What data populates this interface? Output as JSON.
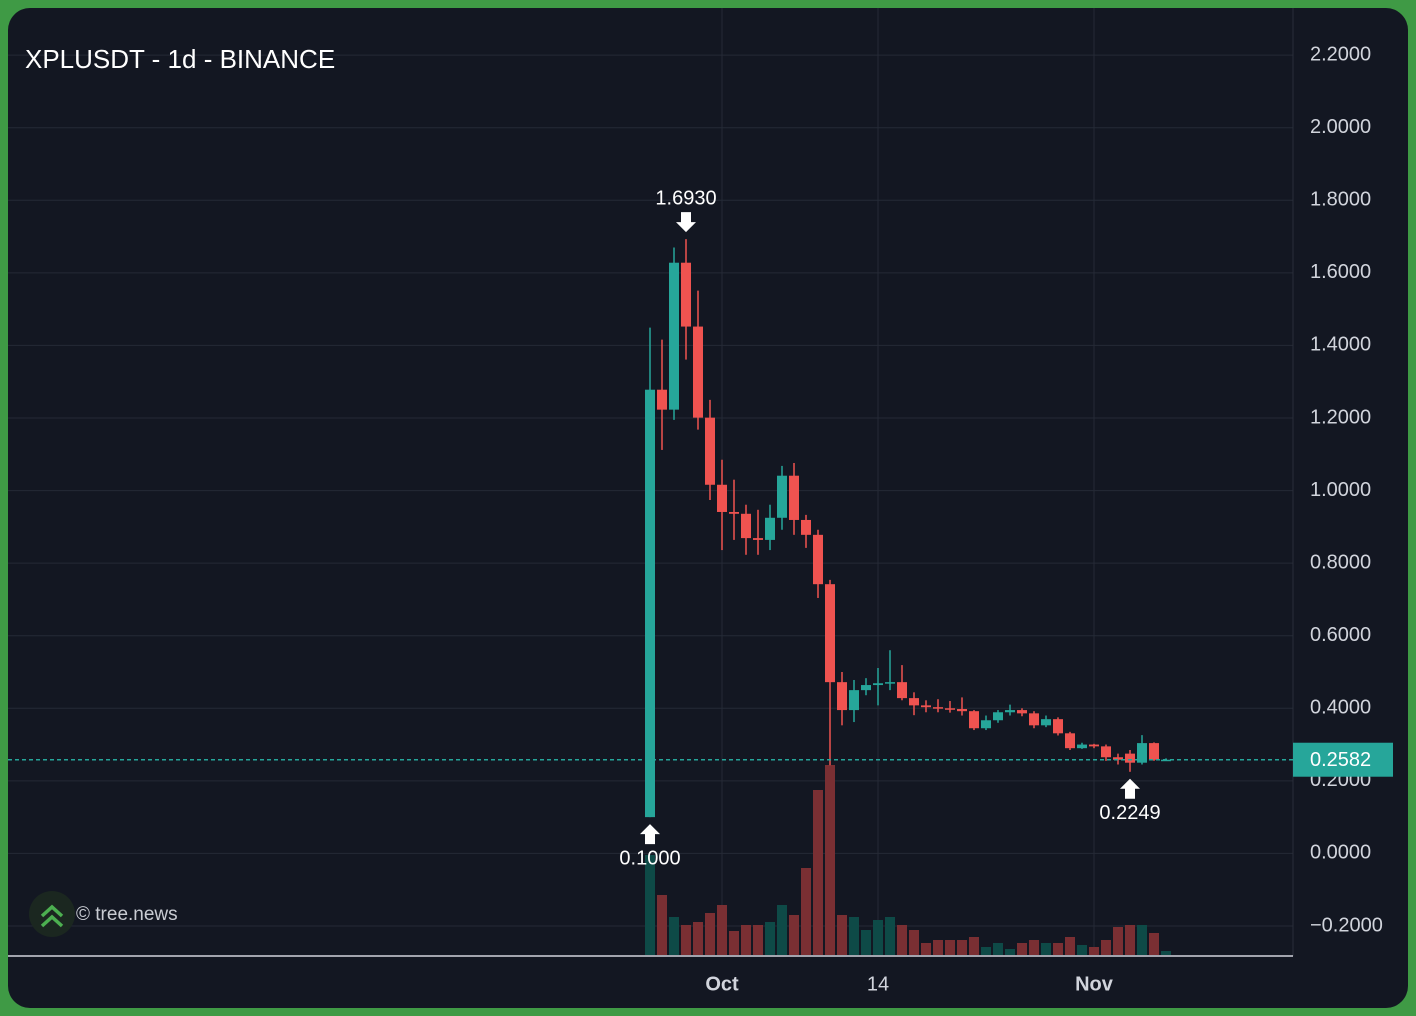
{
  "chart_data": {
    "type": "candlestick",
    "title": "XPLUSDT - 1d - BINANCE",
    "watermark": "© tree.news",
    "categories": [
      null,
      null,
      null,
      null,
      null,
      null,
      "Oct",
      null,
      null,
      null,
      null,
      null,
      null,
      null,
      null,
      null,
      null,
      null,
      null,
      "14",
      null,
      null,
      null,
      null,
      null,
      null,
      null,
      null,
      null,
      null,
      null,
      null,
      null,
      null,
      null,
      null,
      null,
      "Nov",
      null,
      null,
      null,
      null,
      null,
      null
    ],
    "open": [
      0.1,
      1.278,
      1.223,
      1.628,
      1.452,
      1.201,
      1.016,
      0.941,
      0.936,
      0.869,
      0.864,
      0.925,
      1.041,
      0.919,
      0.878,
      0.742,
      0.472,
      0.395,
      0.45,
      0.464,
      0.469,
      0.472,
      0.428,
      0.408,
      0.403,
      0.4,
      0.398,
      0.392,
      0.345,
      0.367,
      0.389,
      0.395,
      0.386,
      0.353,
      0.37,
      0.331,
      0.29,
      0.3,
      0.295,
      0.265,
      0.275,
      0.25,
      0.304,
      0.258
    ],
    "high": [
      1.449,
      1.416,
      1.67,
      1.693,
      1.551,
      1.25,
      1.085,
      1.03,
      0.961,
      0.947,
      0.961,
      1.068,
      1.076,
      0.933,
      0.892,
      0.754,
      0.5,
      0.478,
      0.483,
      0.511,
      0.56,
      0.519,
      0.444,
      0.422,
      0.425,
      0.42,
      0.43,
      0.395,
      0.38,
      0.395,
      0.41,
      0.4,
      0.392,
      0.38,
      0.375,
      0.335,
      0.305,
      0.302,
      0.3,
      0.275,
      0.285,
      0.326,
      0.306,
      0.262
    ],
    "low": [
      0.1,
      1.112,
      1.195,
      1.361,
      1.168,
      0.974,
      0.836,
      0.864,
      0.823,
      0.823,
      0.836,
      0.892,
      0.878,
      0.842,
      0.704,
      0.243,
      0.353,
      0.362,
      0.436,
      0.408,
      0.45,
      0.422,
      0.381,
      0.389,
      0.389,
      0.388,
      0.38,
      0.34,
      0.34,
      0.36,
      0.38,
      0.378,
      0.345,
      0.348,
      0.325,
      0.285,
      0.288,
      0.29,
      0.255,
      0.245,
      0.2249,
      0.245,
      0.255,
      0.255
    ],
    "close": [
      1.278,
      1.223,
      1.628,
      1.452,
      1.201,
      1.016,
      0.941,
      0.936,
      0.869,
      0.864,
      0.925,
      1.041,
      0.919,
      0.878,
      0.742,
      0.472,
      0.395,
      0.45,
      0.464,
      0.469,
      0.472,
      0.428,
      0.408,
      0.403,
      0.4,
      0.398,
      0.392,
      0.345,
      0.367,
      0.389,
      0.395,
      0.386,
      0.353,
      0.37,
      0.331,
      0.29,
      0.3,
      0.295,
      0.265,
      0.258,
      0.25,
      0.304,
      0.258,
      0.2582
    ],
    "volume": [
      100,
      60,
      38,
      30,
      33,
      42,
      50,
      24,
      30,
      30,
      33,
      50,
      40,
      87,
      165,
      190,
      40,
      38,
      25,
      35,
      38,
      30,
      25,
      12,
      15,
      15,
      15,
      18,
      8,
      12,
      6,
      12,
      15,
      12,
      12,
      18,
      10,
      8,
      15,
      28,
      30,
      30,
      22,
      4
    ],
    "up_color": "#26a69a",
    "down_color": "#ef5350",
    "up_volume_color": "#0e4a47",
    "down_volume_color": "#7a2f33",
    "ylim": [
      -0.28,
      2.33
    ],
    "yticks": [
      {
        "value": 2.2,
        "label": "2.2000"
      },
      {
        "value": 2.0,
        "label": "2.0000"
      },
      {
        "value": 1.8,
        "label": "1.8000"
      },
      {
        "value": 1.6,
        "label": "1.6000"
      },
      {
        "value": 1.4,
        "label": "1.4000"
      },
      {
        "value": 1.2,
        "label": "1.2000"
      },
      {
        "value": 1.0,
        "label": "1.0000"
      },
      {
        "value": 0.8,
        "label": "0.8000"
      },
      {
        "value": 0.6,
        "label": "0.6000"
      },
      {
        "value": 0.4,
        "label": "0.4000"
      },
      {
        "value": 0.2,
        "label": "0.2000"
      },
      {
        "value": 0.0,
        "label": "0.0000"
      },
      {
        "value": -0.2,
        "label": "−0.2000"
      }
    ],
    "annotations": [
      {
        "label": "1.6930",
        "value": 1.693,
        "kind": "high"
      },
      {
        "label": "0.1000",
        "value": 0.1,
        "kind": "low"
      },
      {
        "label": "0.2249",
        "value": 0.2249,
        "kind": "low"
      }
    ],
    "last_price": {
      "value": 0.2582,
      "label": "0.2582"
    },
    "grid": true
  }
}
